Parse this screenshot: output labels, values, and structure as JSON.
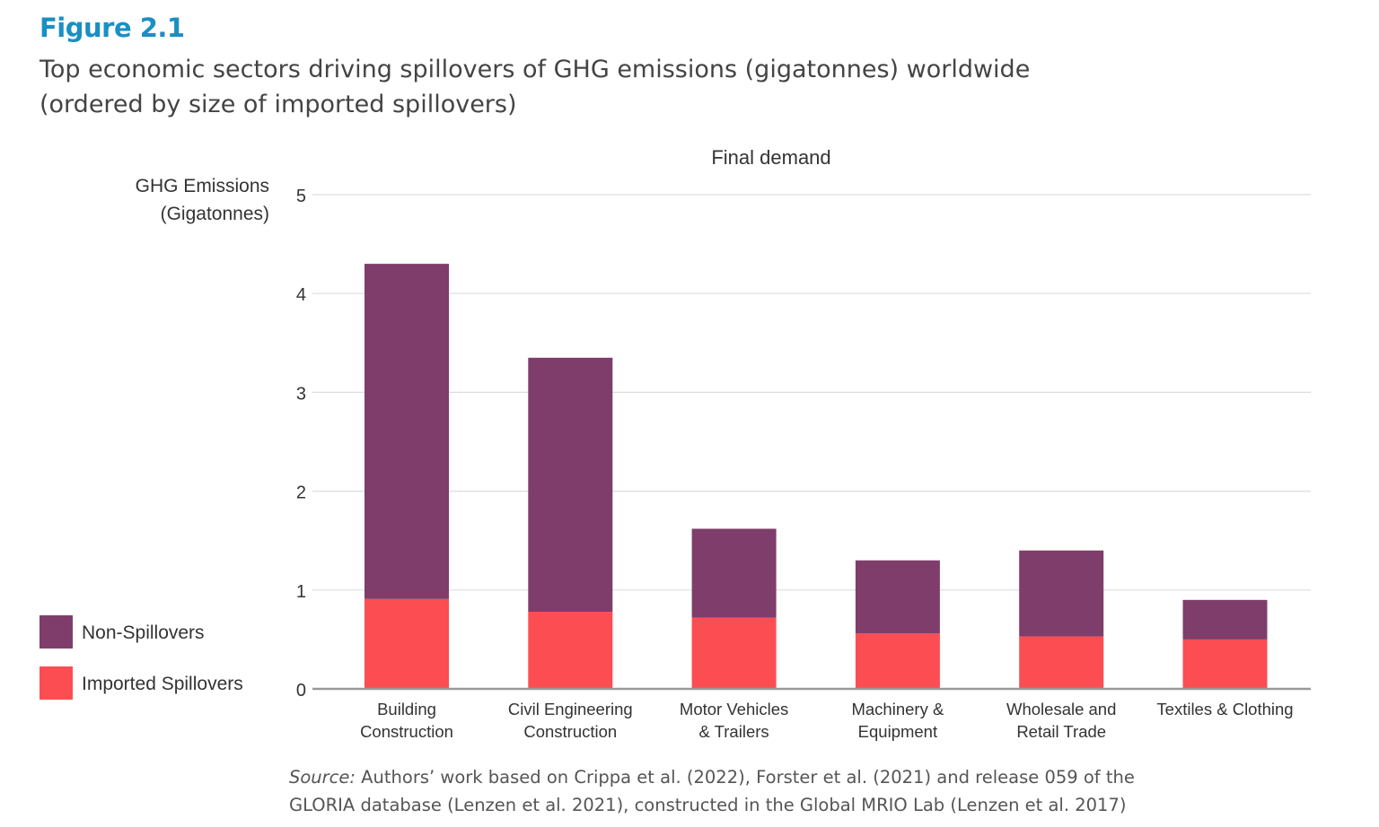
{
  "figure": {
    "label": "Figure 2.1",
    "title_line1": "Top economic sectors driving spillovers of GHG emissions (gigatonnes) worldwide",
    "title_line2": "(ordered by size of imported spillovers)"
  },
  "source": {
    "prefix": "Source:",
    "line1": " Authors’ work based on Crippa et al. (2022), Forster et al. (2021) and release 059 of the",
    "line2": "GLORIA database (Lenzen et al. 2021), constructed in the Global MRIO Lab (Lenzen et al. 2017)"
  },
  "chart_data": {
    "type": "bar",
    "stacked": true,
    "title": "Final demand",
    "ylabel_line1": "GHG Emissions",
    "ylabel_line2": "(Gigatonnes)",
    "ylim": [
      0,
      5
    ],
    "yticks": [
      0,
      1,
      2,
      3,
      4,
      5
    ],
    "grid": true,
    "legend_position": "bottom-left",
    "categories": [
      [
        "Building",
        "Construction"
      ],
      [
        "Civil Engineering",
        "Construction"
      ],
      [
        "Motor Vehicles",
        "& Trailers"
      ],
      [
        "Machinery &",
        "Equipment"
      ],
      [
        "Wholesale and",
        "Retail Trade"
      ],
      [
        "Textiles & Clothing",
        ""
      ]
    ],
    "series": [
      {
        "name": "Imported Spillovers",
        "color": "#fc4d52",
        "values": [
          0.91,
          0.78,
          0.72,
          0.56,
          0.53,
          0.5
        ]
      },
      {
        "name": "Non-Spillovers",
        "color": "#7f3d6b",
        "values": [
          3.39,
          2.57,
          0.9,
          0.74,
          0.87,
          0.4
        ]
      }
    ],
    "legend_order": [
      "Non-Spillovers",
      "Imported Spillovers"
    ]
  }
}
